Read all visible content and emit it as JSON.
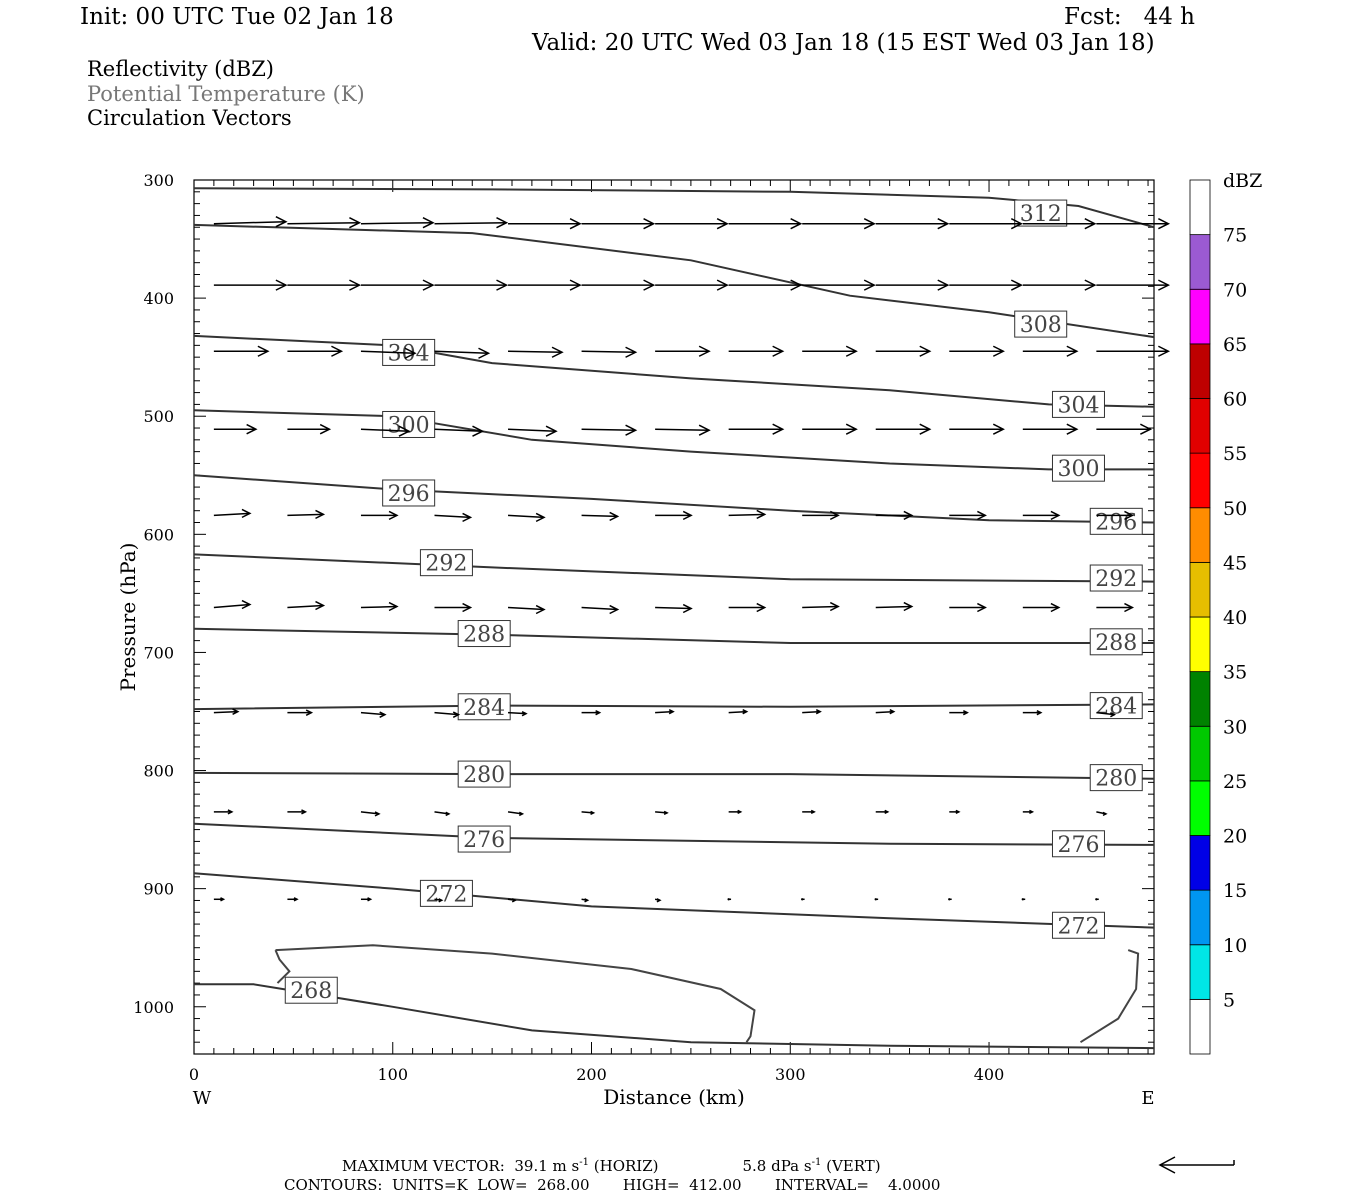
{
  "header": {
    "init": "Init: 00 UTC Tue 02 Jan 18",
    "fcst": "Fcst:   44 h",
    "valid": "Valid: 20 UTC Wed 03 Jan 18 (15 EST Wed 03 Jan 18)",
    "fields": [
      "Reflectivity (dBZ)",
      "Potential Temperature (K)",
      "Circulation Vectors"
    ]
  },
  "colors": {
    "axis": "#000000",
    "contour": "#333333",
    "label_gray": "#777777"
  },
  "colorbar": {
    "title": "dBZ",
    "labels": [
      "5",
      "10",
      "15",
      "20",
      "25",
      "30",
      "35",
      "40",
      "45",
      "50",
      "55",
      "60",
      "65",
      "70",
      "75"
    ],
    "colors": [
      "#ffffff",
      "#00e6e6",
      "#0096f0",
      "#0000e6",
      "#00ff00",
      "#00c800",
      "#008200",
      "#ffff00",
      "#e6be00",
      "#ff8c00",
      "#ff0000",
      "#e10000",
      "#be0000",
      "#ff00ff",
      "#9b5ad2",
      "#ffffff"
    ]
  },
  "chart_data": {
    "type": "cross-section",
    "xlabel": "Distance (km)",
    "ylabel": "Pressure (hPa)",
    "xlim": [
      0,
      483
    ],
    "ylim": [
      300,
      1040
    ],
    "xticks": [
      "0",
      "100",
      "200",
      "300",
      "400"
    ],
    "yticks": [
      "300",
      "400",
      "500",
      "600",
      "700",
      "800",
      "900",
      "1000"
    ],
    "x_end_labels": [
      "W",
      "E"
    ],
    "contours": [
      {
        "label": "312",
        "points": [
          [
            0,
            307
          ],
          [
            150,
            308
          ],
          [
            300,
            310
          ],
          [
            400,
            315
          ],
          [
            445,
            322
          ],
          [
            483,
            340
          ]
        ],
        "label_at": [
          426,
          328
        ]
      },
      {
        "label": "308",
        "points": [
          [
            0,
            338
          ],
          [
            140,
            345
          ],
          [
            250,
            368
          ],
          [
            330,
            398
          ],
          [
            400,
            412
          ],
          [
            483,
            433
          ]
        ],
        "label_at": [
          426,
          422
        ]
      },
      {
        "label": "304",
        "points": [
          [
            0,
            432
          ],
          [
            100,
            440
          ],
          [
            150,
            455
          ],
          [
            250,
            468
          ],
          [
            350,
            478
          ],
          [
            430,
            490
          ],
          [
            483,
            492
          ]
        ],
        "label_at": [
          108,
          446
        ]
      },
      {
        "label": "304b",
        "label_text": "304",
        "points": [],
        "label_at": [
          445,
          490
        ]
      },
      {
        "label": "300",
        "points": [
          [
            0,
            495
          ],
          [
            100,
            500
          ],
          [
            170,
            520
          ],
          [
            250,
            530
          ],
          [
            350,
            540
          ],
          [
            430,
            545
          ],
          [
            483,
            545
          ]
        ],
        "label_at": [
          108,
          507
        ]
      },
      {
        "label": "300b",
        "label_text": "300",
        "points": [],
        "label_at": [
          445,
          544
        ]
      },
      {
        "label": "296",
        "points": [
          [
            0,
            550
          ],
          [
            100,
            562
          ],
          [
            200,
            570
          ],
          [
            300,
            580
          ],
          [
            400,
            588
          ],
          [
            483,
            590
          ]
        ],
        "label_at": [
          108,
          565
        ]
      },
      {
        "label": "296b",
        "label_text": "296",
        "points": [],
        "label_at": [
          464,
          589
        ]
      },
      {
        "label": "292",
        "points": [
          [
            0,
            617
          ],
          [
            150,
            628
          ],
          [
            300,
            638
          ],
          [
            483,
            640
          ]
        ],
        "label_at": [
          127,
          624
        ]
      },
      {
        "label": "292b",
        "label_text": "292",
        "points": [],
        "label_at": [
          464,
          637
        ]
      },
      {
        "label": "288",
        "points": [
          [
            0,
            680
          ],
          [
            150,
            685
          ],
          [
            300,
            692
          ],
          [
            483,
            692
          ]
        ],
        "label_at": [
          146,
          684
        ]
      },
      {
        "label": "288b",
        "label_text": "288",
        "points": [],
        "label_at": [
          464,
          691
        ]
      },
      {
        "label": "284",
        "points": [
          [
            0,
            748
          ],
          [
            150,
            745
          ],
          [
            300,
            746
          ],
          [
            483,
            744
          ]
        ],
        "label_at": [
          146,
          746
        ]
      },
      {
        "label": "284b",
        "label_text": "284",
        "points": [],
        "label_at": [
          464,
          745
        ]
      },
      {
        "label": "280",
        "points": [
          [
            0,
            802
          ],
          [
            150,
            803
          ],
          [
            300,
            803
          ],
          [
            483,
            807
          ]
        ],
        "label_at": [
          146,
          803
        ]
      },
      {
        "label": "280b",
        "label_text": "280",
        "points": [],
        "label_at": [
          464,
          806
        ]
      },
      {
        "label": "276",
        "points": [
          [
            0,
            845
          ],
          [
            150,
            857
          ],
          [
            350,
            862
          ],
          [
            483,
            863
          ]
        ],
        "label_at": [
          146,
          858
        ]
      },
      {
        "label": "276b",
        "label_text": "276",
        "points": [],
        "label_at": [
          445,
          862
        ]
      },
      {
        "label": "272",
        "points": [
          [
            0,
            887
          ],
          [
            100,
            900
          ],
          [
            200,
            915
          ],
          [
            350,
            925
          ],
          [
            483,
            933
          ]
        ],
        "label_at": [
          127,
          904
        ]
      },
      {
        "label": "272b",
        "label_text": "272",
        "points": [],
        "label_at": [
          445,
          931
        ]
      },
      {
        "label": "268",
        "points": [
          [
            0,
            981
          ],
          [
            30,
            981
          ],
          [
            100,
            1000
          ],
          [
            170,
            1020
          ],
          [
            250,
            1030
          ],
          [
            350,
            1033
          ],
          [
            483,
            1035
          ]
        ],
        "label_at": [
          59,
          986
        ]
      }
    ],
    "closed_contour": [
      [
        41,
        952
      ],
      [
        90,
        948
      ],
      [
        150,
        955
      ],
      [
        220,
        968
      ],
      [
        265,
        985
      ],
      [
        282,
        1003
      ],
      [
        280,
        1025
      ],
      [
        278,
        1030
      ]
    ],
    "closed_contour2": [
      [
        470,
        952
      ],
      [
        475,
        955
      ],
      [
        474,
        985
      ],
      [
        465,
        1010
      ],
      [
        446,
        1030
      ]
    ],
    "closed_contour3": [
      [
        41,
        952
      ],
      [
        43,
        960
      ],
      [
        48,
        970
      ],
      [
        42,
        980
      ]
    ],
    "vectors": {
      "columns_km": [
        10,
        47,
        84,
        121,
        158,
        195,
        232,
        269,
        306,
        343,
        380,
        417,
        454
      ],
      "rows": [
        {
          "p": 337,
          "u": [
            0.6,
            0.6,
            0.6,
            0.6,
            0.6,
            0.6,
            0.6,
            0.6,
            0.6,
            0.6,
            0.6,
            0.6,
            0.6
          ],
          "v": [
            -2,
            -1,
            -1,
            -1,
            0,
            0,
            0,
            0,
            0,
            0,
            0,
            0,
            0
          ]
        },
        {
          "p": 389,
          "u": [
            0.6,
            0.6,
            0.6,
            0.6,
            0.6,
            0.6,
            0.6,
            0.6,
            0.6,
            0.6,
            0.6,
            0.6,
            0.6
          ],
          "v": [
            0,
            0,
            0,
            0,
            0,
            0,
            0,
            0,
            0,
            0,
            0,
            0,
            0
          ]
        },
        {
          "p": 445,
          "u": [
            0.45,
            0.45,
            0.45,
            0.45,
            0.45,
            0.45,
            0.45,
            0.45,
            0.45,
            0.45,
            0.45,
            0.45,
            0.6
          ],
          "v": [
            0,
            0,
            2,
            2,
            1,
            1,
            0,
            0,
            0,
            0,
            0,
            0,
            0
          ]
        },
        {
          "p": 511,
          "u": [
            0.35,
            0.35,
            0.4,
            0.4,
            0.4,
            0.45,
            0.45,
            0.45,
            0.45,
            0.45,
            0.45,
            0.45,
            0.45
          ],
          "v": [
            0,
            0,
            2,
            2,
            2,
            1,
            1,
            0,
            0,
            0,
            0,
            0,
            0
          ]
        },
        {
          "p": 584,
          "u": [
            0.3,
            0.3,
            0.3,
            0.3,
            0.3,
            0.3,
            0.3,
            0.3,
            0.3,
            0.3,
            0.3,
            0.3,
            0.3
          ],
          "v": [
            -2,
            -1,
            0,
            2,
            2,
            1,
            0,
            -1,
            0,
            0,
            0,
            0,
            0
          ]
        },
        {
          "p": 662,
          "u": [
            0.3,
            0.3,
            0.3,
            0.3,
            0.3,
            0.3,
            0.3,
            0.3,
            0.3,
            0.3,
            0.3,
            0.3,
            0.3
          ],
          "v": [
            -3,
            -2,
            -1,
            0,
            2,
            2,
            1,
            0,
            -1,
            -1,
            0,
            0,
            0
          ]
        },
        {
          "p": 751,
          "u": [
            0.2,
            0.2,
            0.2,
            0.2,
            0.15,
            0.15,
            0.15,
            0.15,
            0.15,
            0.15,
            0.15,
            0.15,
            0.15
          ],
          "v": [
            -1,
            0,
            2,
            2,
            1,
            0,
            -1,
            -1,
            -1,
            -1,
            0,
            0,
            2
          ]
        },
        {
          "p": 835,
          "u": [
            0.15,
            0.15,
            0.15,
            0.12,
            0.12,
            0.1,
            0.1,
            0.1,
            0.1,
            0.1,
            0.08,
            0.08,
            0.08
          ],
          "v": [
            0,
            0,
            2,
            2,
            2,
            1,
            1,
            0,
            0,
            0,
            0,
            0,
            2
          ]
        },
        {
          "p": 909,
          "u": [
            0.08,
            0.08,
            0.08,
            0.06,
            0.06,
            0.05,
            0.04,
            0.02,
            0.02,
            0.02,
            0.02,
            0.02,
            0.02
          ],
          "v": [
            0,
            0,
            0,
            1,
            1,
            1,
            1,
            0,
            0,
            0,
            0,
            0,
            0
          ]
        }
      ]
    }
  },
  "footer": {
    "max_vector": "MAXIMUM VECTOR:  39.1 m s",
    "horiz": "(HORIZ)",
    "vert_val": "5.8 dPa s",
    "vert": "(VERT)",
    "exp": "-1",
    "contours": "CONTOURS:  UNITS=K  LOW=  268.00       HIGH=  412.00       INTERVAL=    4.0000"
  }
}
